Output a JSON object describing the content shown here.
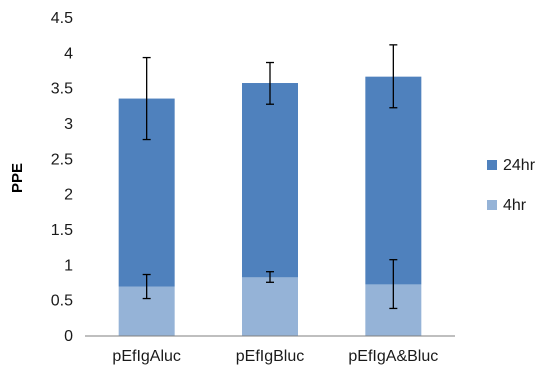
{
  "chart_data": {
    "type": "bar",
    "stacked": true,
    "categories": [
      "pEfIgAluc",
      "pEfIgBluc",
      "pEfIgA&Bluc"
    ],
    "ylabel": "PPE",
    "xlabel": "",
    "ylim": [
      0,
      4.5
    ],
    "yticks": [
      "0",
      "0.5",
      "1",
      "1.5",
      "2",
      "2.5",
      "3",
      "3.5",
      "4",
      "4.5"
    ],
    "grid": false,
    "legend_position": "right",
    "series": [
      {
        "name": "4hr",
        "color": "#95b3d7",
        "values": [
          0.7,
          0.83,
          0.73
        ],
        "error_low": [
          0.53,
          0.76,
          0.39
        ],
        "error_high": [
          0.87,
          0.91,
          1.08
        ]
      },
      {
        "name": "24hr",
        "color": "#4f81bd",
        "values": [
          2.66,
          2.75,
          2.94
        ],
        "total": [
          3.36,
          3.58,
          3.67
        ],
        "error_low": [
          2.78,
          3.28,
          3.23
        ],
        "error_high": [
          3.94,
          3.87,
          4.12
        ]
      }
    ],
    "legend_order": [
      "24hr",
      "4hr"
    ]
  }
}
